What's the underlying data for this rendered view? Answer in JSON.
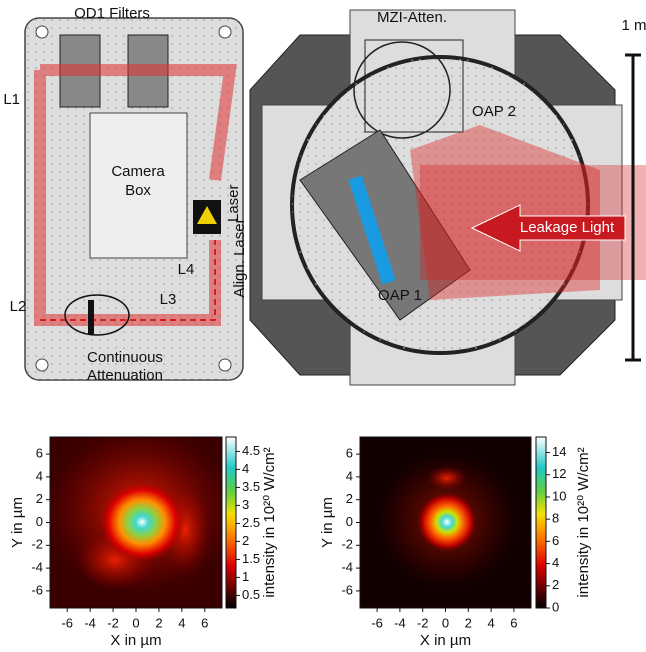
{
  "diagram": {
    "od1_filters": "OD1 Filters",
    "mzi_atten": "MZI-Atten.",
    "scale": "1 m",
    "l1": "L1",
    "camera_box": [
      "Camera",
      "Box"
    ],
    "laser": "Laser",
    "align_laser": "Align. Laser",
    "l4": "L4",
    "l2": "L2",
    "l3": "L3",
    "continuous_attenuation": [
      "Continuous",
      "Attenuation"
    ],
    "oap2": "OAP 2",
    "oap1": "OAP 1",
    "leakage_light": "Leakage Light"
  },
  "chart_data": [
    {
      "type": "heatmap",
      "x_label": "X in µm",
      "y_label": "Y in µm",
      "colorbar_label": "intensity in 10²⁰ W/cm²",
      "xlim": [
        -7.5,
        7.5
      ],
      "ylim": [
        -7.5,
        7.5
      ],
      "xticks": [
        -6,
        -4,
        -2,
        0,
        2,
        4,
        6
      ],
      "yticks": [
        -6,
        -4,
        -2,
        0,
        2,
        4,
        6
      ],
      "clim": [
        0.15,
        4.9
      ],
      "cticks": [
        0.5,
        1,
        1.5,
        2,
        2.5,
        3,
        3.5,
        4,
        4.5
      ]
    },
    {
      "type": "heatmap",
      "x_label": "X in µm",
      "y_label": "Y in µm",
      "colorbar_label": "intensity in 10²⁰ W/cm²",
      "xlim": [
        -7.5,
        7.5
      ],
      "ylim": [
        -7.5,
        7.5
      ],
      "xticks": [
        -6,
        -4,
        -2,
        0,
        2,
        4,
        6
      ],
      "yticks": [
        -6,
        -4,
        -2,
        0,
        2,
        4,
        6
      ],
      "clim": [
        0,
        15.4
      ],
      "cticks": [
        0,
        2,
        4,
        6,
        8,
        10,
        12,
        14
      ]
    }
  ]
}
